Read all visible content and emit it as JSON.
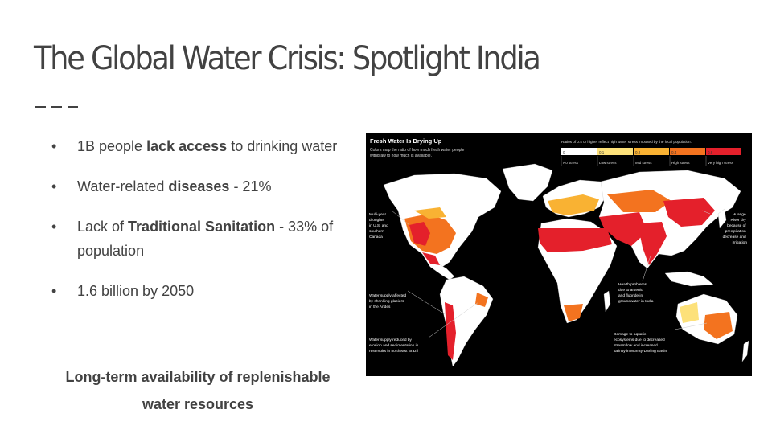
{
  "slide": {
    "title": "The Global Water Crisis: Spotlight India",
    "bullets": [
      {
        "pre": "1B people ",
        "bold": "lack access",
        "post": " to drinking water"
      },
      {
        "pre": "Water-related ",
        "bold": "diseases",
        "post": " - 21%"
      },
      {
        "pre": "Lack of ",
        "bold": "Traditional Sanitation",
        "post": " - 33% of population"
      },
      {
        "pre": "1.6 billion by 2050",
        "bold": "",
        "post": ""
      }
    ],
    "bullet_glyph": "•",
    "conclusion": "Long-term availability of replenishable water resources"
  },
  "map": {
    "title": "Fresh Water Is Drying Up",
    "subtitle_1": "Colors map the ratio of how much fresh water people",
    "subtitle_2": "withdraw to how much is available.",
    "legend_note": "Ratios of 0.4 or higher reflect high water stress imposed by the local population.",
    "legend": [
      {
        "value": "0",
        "label": "No stress",
        "color": "#ffffff"
      },
      {
        "value": "0.1",
        "label": "Low stress",
        "color": "#fde17a"
      },
      {
        "value": "0.2",
        "label": "Mid stress",
        "color": "#f9b233"
      },
      {
        "value": "0.4",
        "label": "High stress",
        "color": "#f3731f"
      },
      {
        "value": "0.8",
        "label": "Very high stress",
        "color": "#e4202b"
      }
    ],
    "annotations": {
      "us": [
        "Multi-year",
        "droughts",
        "in U.S. and",
        "southern",
        "Canada"
      ],
      "andes": [
        "Water supply affected",
        "by shrinking glaciers",
        "in the Andes"
      ],
      "brazil": [
        "Water supply reduced by",
        "erosion and sedimentation in",
        "reservoirs in northeast Brazil"
      ],
      "india": [
        "Health problems",
        "due to arsenic",
        "and fluoride in",
        "groundwater in India"
      ],
      "australia": [
        "Damage to aquatic",
        "ecosystems due to decreased",
        "streamflow and increased",
        "salinity in Murray-Darling Basin"
      ],
      "huang": [
        "Huange",
        "River dry",
        "because of",
        "precipitation",
        "decrease and",
        "irrigation"
      ]
    }
  }
}
